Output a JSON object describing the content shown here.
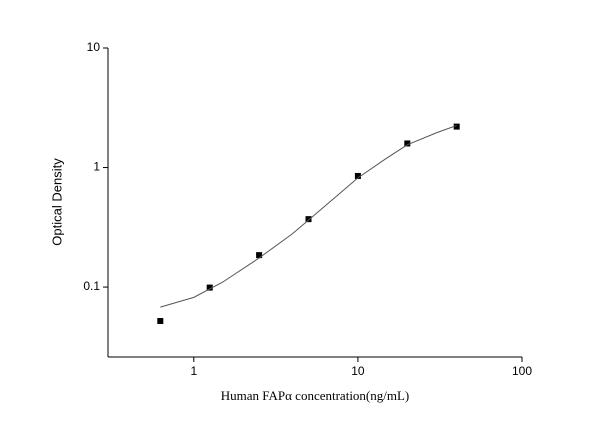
{
  "chart_data": {
    "type": "scatter",
    "x_label": "Human FAPα  concentration(ng/mL)",
    "y_label": "Optical Density",
    "xscale": "log",
    "yscale": "log",
    "xlim": [
      0.3,
      100
    ],
    "ylim": [
      0.026,
      10
    ],
    "xticks": [
      1,
      10,
      100
    ],
    "yticks": [
      0.1,
      1,
      10
    ],
    "series": [
      {
        "mode": "markers",
        "color": "#000000",
        "x": [
          0.625,
          1.25,
          2.5,
          5,
          10,
          20,
          40
        ],
        "values": [
          0.052,
          0.099,
          0.185,
          0.37,
          0.85,
          1.59,
          2.2
        ]
      },
      {
        "mode": "line",
        "color": "#555555",
        "x": [
          0.625,
          1,
          1.5,
          2.5,
          4,
          6,
          10,
          15,
          20,
          30,
          40
        ],
        "values": [
          0.068,
          0.082,
          0.11,
          0.175,
          0.28,
          0.45,
          0.82,
          1.2,
          1.55,
          1.95,
          2.25
        ]
      }
    ]
  }
}
